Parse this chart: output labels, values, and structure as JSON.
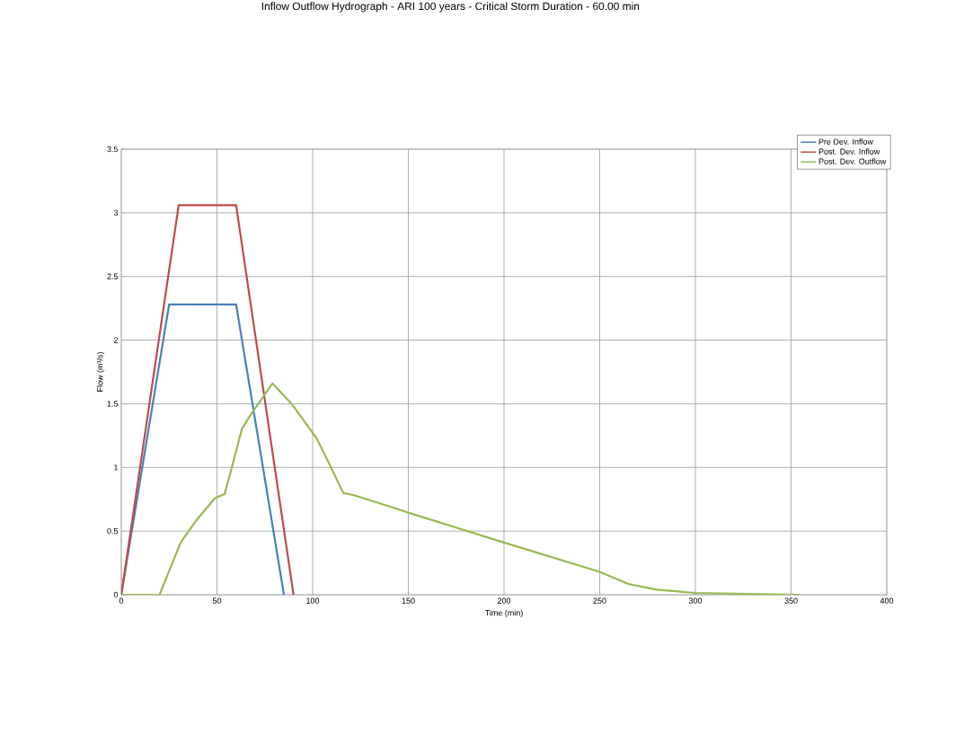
{
  "chart_data": {
    "type": "line",
    "title": "Inflow Outflow Hydrograph - ARI 100 years - Critical Storm Duration - 60.00 min",
    "xlabel": "Time (min)",
    "ylabel": "Flow (m³/s)",
    "xlim": [
      0,
      400
    ],
    "ylim": [
      0,
      3.5
    ],
    "xticks": [
      0,
      50,
      100,
      150,
      200,
      250,
      300,
      350,
      400
    ],
    "yticks": [
      0,
      0.5,
      1,
      1.5,
      2,
      2.5,
      3,
      3.5
    ],
    "grid": true,
    "legend": "top right",
    "marker": "none",
    "line_style": "solid",
    "series": [
      {
        "name": "Pre Dev. Inflow",
        "color": "#4a7ebb",
        "x": [
          0,
          25,
          60,
          85
        ],
        "values": [
          0,
          2.28,
          2.28,
          0
        ]
      },
      {
        "name": "Post. Dev. Inflow",
        "color": "#be4b48",
        "x": [
          0,
          30,
          60,
          90
        ],
        "values": [
          0,
          3.06,
          3.06,
          0
        ]
      },
      {
        "name": "Post. Dev. Outflow",
        "color": "#98b954",
        "x": [
          0,
          20,
          31,
          39,
          49,
          54,
          59,
          63,
          67,
          79,
          89,
          102,
          108,
          116,
          122,
          141,
          150,
          200,
          250,
          265,
          280,
          300,
          355
        ],
        "values": [
          0,
          0,
          0.41,
          0.58,
          0.76,
          0.79,
          1.07,
          1.3,
          1.4,
          1.66,
          1.5,
          1.23,
          1.05,
          0.8,
          0.78,
          0.69,
          0.645,
          0.41,
          0.18,
          0.085,
          0.04,
          0.014,
          0
        ]
      }
    ]
  }
}
